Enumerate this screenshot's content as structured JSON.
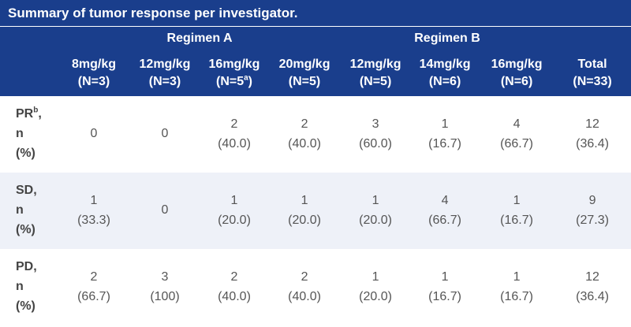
{
  "caption": "Summary of tumor response per investigator.",
  "groups": {
    "a": "Regimen A",
    "b": "Regimen B"
  },
  "columns": [
    {
      "dose": "8mg/kg",
      "n": "(N=3)",
      "sup": ""
    },
    {
      "dose": "12mg/kg",
      "n": "(N=3)",
      "sup": ""
    },
    {
      "dose": "16mg/kg",
      "n": "(N=5",
      "sup": "a",
      "close": ")"
    },
    {
      "dose": "20mg/kg",
      "n": "(N=5)",
      "sup": ""
    },
    {
      "dose": "12mg/kg",
      "n": "(N=5)",
      "sup": ""
    },
    {
      "dose": "14mg/kg",
      "n": "(N=6)",
      "sup": ""
    },
    {
      "dose": "16mg/kg",
      "n": "(N=6)",
      "sup": ""
    },
    {
      "dose": "Total",
      "n": "(N=33)",
      "sup": ""
    }
  ],
  "rows": [
    {
      "label": "PR",
      "label_sup": "b",
      "label_suffix": ",",
      "line2": "n",
      "line3": "(%)",
      "cells": [
        [
          "0",
          ""
        ],
        [
          "0",
          ""
        ],
        [
          "2",
          "(40.0)"
        ],
        [
          "2",
          "(40.0)"
        ],
        [
          "3",
          "(60.0)"
        ],
        [
          "1",
          "(16.7)"
        ],
        [
          "4",
          "(66.7)"
        ],
        [
          "12",
          "(36.4)"
        ]
      ]
    },
    {
      "label": "SD,",
      "label_sup": "",
      "label_suffix": "",
      "line2": "n",
      "line3": "(%)",
      "cells": [
        [
          "1",
          "(33.3)"
        ],
        [
          "0",
          ""
        ],
        [
          "1",
          "(20.0)"
        ],
        [
          "1",
          "(20.0)"
        ],
        [
          "1",
          "(20.0)"
        ],
        [
          "4",
          "(66.7)"
        ],
        [
          "1",
          "(16.7)"
        ],
        [
          "9",
          "(27.3)"
        ]
      ]
    },
    {
      "label": "PD,",
      "label_sup": "",
      "label_suffix": "",
      "line2": "n",
      "line3": "(%)",
      "cells": [
        [
          "2",
          "(66.7)"
        ],
        [
          "3",
          "(100)"
        ],
        [
          "2",
          "(40.0)"
        ],
        [
          "2",
          "(40.0)"
        ],
        [
          "1",
          "(20.0)"
        ],
        [
          "1",
          "(16.7)"
        ],
        [
          "1",
          "(16.7)"
        ],
        [
          "12",
          "(36.4)"
        ]
      ]
    }
  ]
}
